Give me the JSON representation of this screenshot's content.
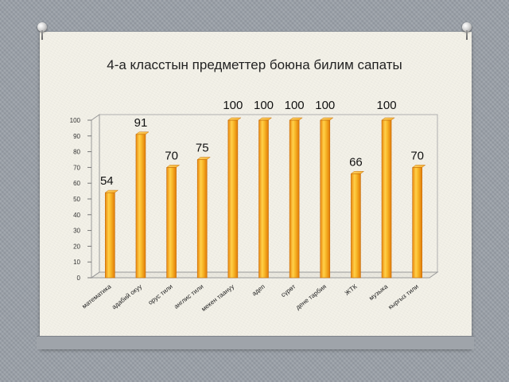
{
  "title": "4-а класстын предметтер боюна билим сапаты",
  "chart_data": {
    "type": "bar",
    "title": "4-а класстын предметтер боюна билим сапаты",
    "categories": [
      "математика",
      "адабий окуу",
      "орус тили",
      "англис тили",
      "мекен таануу",
      "адеп",
      "сүрөт",
      "дене тарбия",
      "ЖТК",
      "музыка",
      "кыргыз тили"
    ],
    "values": [
      54,
      91,
      70,
      75,
      100,
      100,
      100,
      100,
      66,
      100,
      70
    ],
    "data_labels": [
      "54",
      "91",
      "70",
      "75",
      "100",
      "100",
      "100",
      "100",
      "66",
      "100",
      "70"
    ],
    "yticks": [
      "0",
      "10",
      "20",
      "30",
      "40",
      "50",
      "60",
      "70",
      "80",
      "90",
      "100"
    ],
    "ylim": [
      0,
      100
    ],
    "xlabel": "",
    "ylabel": "",
    "grid": false,
    "legend": "none",
    "bar_color": "#f5a21c",
    "bar_edge_color": "#c46d0a"
  }
}
